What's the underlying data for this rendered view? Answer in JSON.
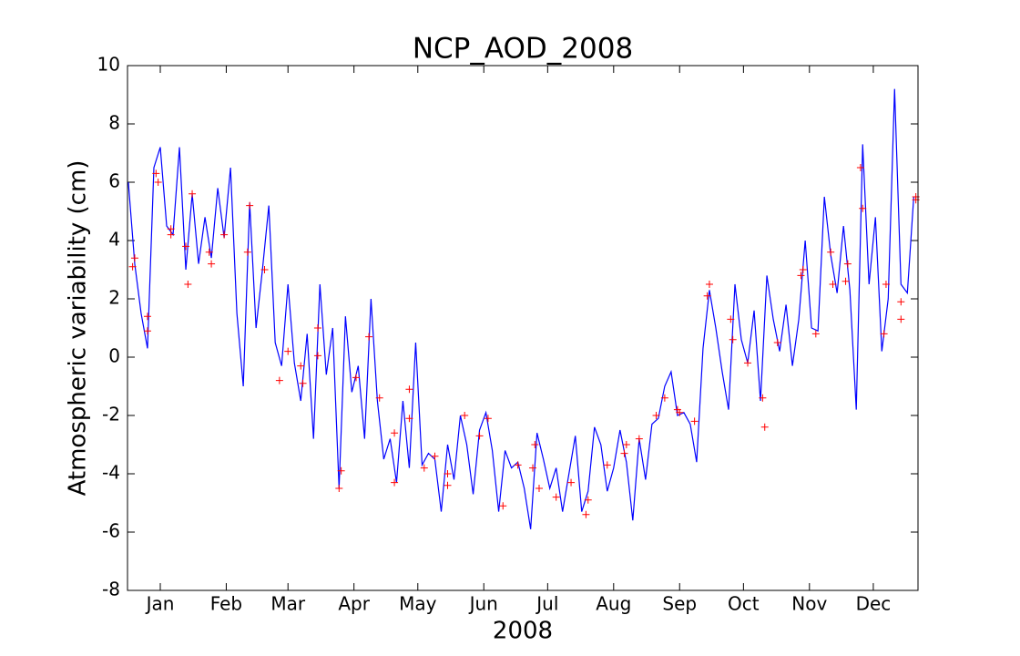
{
  "chart_data": {
    "type": "line",
    "title": "NCP_AOD_2008",
    "xlabel": "2008",
    "ylabel": "Atmospheric variability (cm)",
    "xlim": [
      -15.4,
      356
    ],
    "ylim": [
      -8,
      10
    ],
    "xticks": [
      {
        "value": 0,
        "label": "Jan"
      },
      {
        "value": 31,
        "label": "Feb"
      },
      {
        "value": 60,
        "label": "Mar"
      },
      {
        "value": 91,
        "label": "Apr"
      },
      {
        "value": 121,
        "label": "May"
      },
      {
        "value": 152,
        "label": "Jun"
      },
      {
        "value": 182,
        "label": "Jul"
      },
      {
        "value": 213,
        "label": "Aug"
      },
      {
        "value": 244,
        "label": "Sep"
      },
      {
        "value": 274,
        "label": "Oct"
      },
      {
        "value": 305,
        "label": "Nov"
      },
      {
        "value": 335,
        "label": "Dec"
      }
    ],
    "yticks": [
      -8,
      -6,
      -4,
      -2,
      0,
      2,
      4,
      6,
      8,
      10
    ],
    "series": [
      {
        "color": "#0000ff",
        "marker": "none",
        "x": [
          -15,
          -12,
          -9,
          -6,
          -3,
          0,
          3,
          6,
          9,
          12,
          15,
          18,
          21,
          24,
          27,
          30,
          33,
          36,
          39,
          42,
          45,
          48,
          51,
          54,
          57,
          60,
          63,
          66,
          69,
          72,
          75,
          78,
          81,
          84,
          87,
          90,
          93,
          96,
          99,
          102,
          105,
          108,
          111,
          114,
          117,
          120,
          123,
          126,
          129,
          132,
          135,
          138,
          141,
          144,
          147,
          150,
          153,
          156,
          159,
          162,
          165,
          168,
          171,
          174,
          177,
          180,
          183,
          186,
          189,
          192,
          195,
          198,
          201,
          204,
          207,
          210,
          213,
          216,
          219,
          222,
          225,
          228,
          231,
          234,
          237,
          240,
          243,
          246,
          249,
          252,
          255,
          258,
          261,
          264,
          267,
          270,
          273,
          276,
          279,
          282,
          285,
          288,
          291,
          294,
          297,
          300,
          303,
          306,
          309,
          312,
          315,
          318,
          321,
          324,
          327,
          330,
          333,
          336,
          339,
          342,
          345,
          348,
          351,
          354
        ],
        "values": [
          6.0,
          3.2,
          1.5,
          0.3,
          6.5,
          7.2,
          4.5,
          4.2,
          7.2,
          3.0,
          5.6,
          3.2,
          4.8,
          3.4,
          5.8,
          4.1,
          6.5,
          1.5,
          -1.0,
          5.3,
          1.0,
          3.0,
          5.2,
          0.5,
          -0.3,
          2.5,
          -0.2,
          -1.5,
          0.8,
          -2.8,
          2.5,
          -0.6,
          1.0,
          -4.5,
          1.4,
          -1.2,
          -0.3,
          -2.8,
          2.0,
          -1.5,
          -3.5,
          -2.8,
          -4.3,
          -1.5,
          -3.8,
          0.5,
          -3.7,
          -3.3,
          -3.5,
          -5.3,
          -3.0,
          -4.2,
          -2.0,
          -3.0,
          -4.7,
          -2.5,
          -1.9,
          -3.2,
          -5.3,
          -3.2,
          -3.8,
          -3.6,
          -4.5,
          -5.9,
          -2.6,
          -3.5,
          -4.5,
          -3.8,
          -5.3,
          -4.0,
          -2.7,
          -5.3,
          -4.6,
          -2.4,
          -3.0,
          -4.6,
          -3.8,
          -2.5,
          -3.6,
          -5.6,
          -2.8,
          -4.2,
          -2.3,
          -2.1,
          -1.0,
          -0.5,
          -2.0,
          -1.9,
          -2.3,
          -3.6,
          0.3,
          2.3,
          1.0,
          -0.5,
          -1.8,
          2.5,
          0.6,
          -0.2,
          1.6,
          -1.5,
          2.8,
          1.3,
          0.2,
          1.8,
          -0.3,
          1.3,
          4.0,
          1.0,
          0.9,
          5.5,
          3.5,
          2.2,
          4.5,
          2.3,
          -1.8,
          7.3,
          2.5,
          4.8,
          0.2,
          2.0,
          9.2,
          2.5,
          2.2,
          5.5
        ]
      },
      {
        "color": "#ff0000",
        "marker": "+",
        "x": [
          -13,
          -12,
          -6,
          -6,
          -2,
          -1,
          5,
          5,
          12,
          13,
          15,
          23,
          24,
          30,
          41,
          42,
          49,
          56,
          60,
          66,
          67,
          74,
          74,
          84,
          85,
          92,
          98,
          103,
          110,
          110,
          117,
          117,
          124,
          129,
          135,
          135,
          143,
          150,
          154,
          161,
          168,
          175,
          176,
          178,
          186,
          193,
          201,
          200,
          210,
          218,
          219,
          225,
          233,
          237,
          243,
          244,
          251,
          257,
          258,
          268,
          269,
          276,
          283,
          284,
          290,
          301,
          302,
          308,
          315,
          316,
          322,
          323,
          329,
          330,
          340,
          341,
          348,
          348,
          355,
          355
        ],
        "values": [
          3.1,
          3.4,
          1.4,
          0.9,
          6.3,
          6.0,
          4.4,
          4.2,
          3.8,
          2.5,
          5.6,
          3.6,
          3.2,
          4.2,
          3.6,
          5.2,
          3.0,
          -0.8,
          0.2,
          -0.3,
          -0.9,
          1.0,
          0.05,
          -4.5,
          -3.9,
          -0.7,
          0.7,
          -1.4,
          -2.6,
          -4.3,
          -1.1,
          -2.1,
          -3.8,
          -3.4,
          -4.4,
          -4.0,
          -2.0,
          -2.7,
          -2.1,
          -5.1,
          -3.7,
          -3.8,
          -3.0,
          -4.5,
          -4.8,
          -4.3,
          -4.9,
          -5.4,
          -3.7,
          -3.3,
          -3.0,
          -2.8,
          -2.0,
          -1.4,
          -1.8,
          -1.9,
          -2.2,
          2.1,
          2.5,
          1.3,
          0.6,
          -0.2,
          -1.4,
          -2.4,
          0.5,
          2.8,
          3.0,
          0.8,
          3.6,
          2.5,
          2.6,
          3.2,
          6.5,
          5.1,
          0.8,
          2.5,
          1.9,
          1.3,
          5.4,
          5.5
        ]
      }
    ]
  }
}
